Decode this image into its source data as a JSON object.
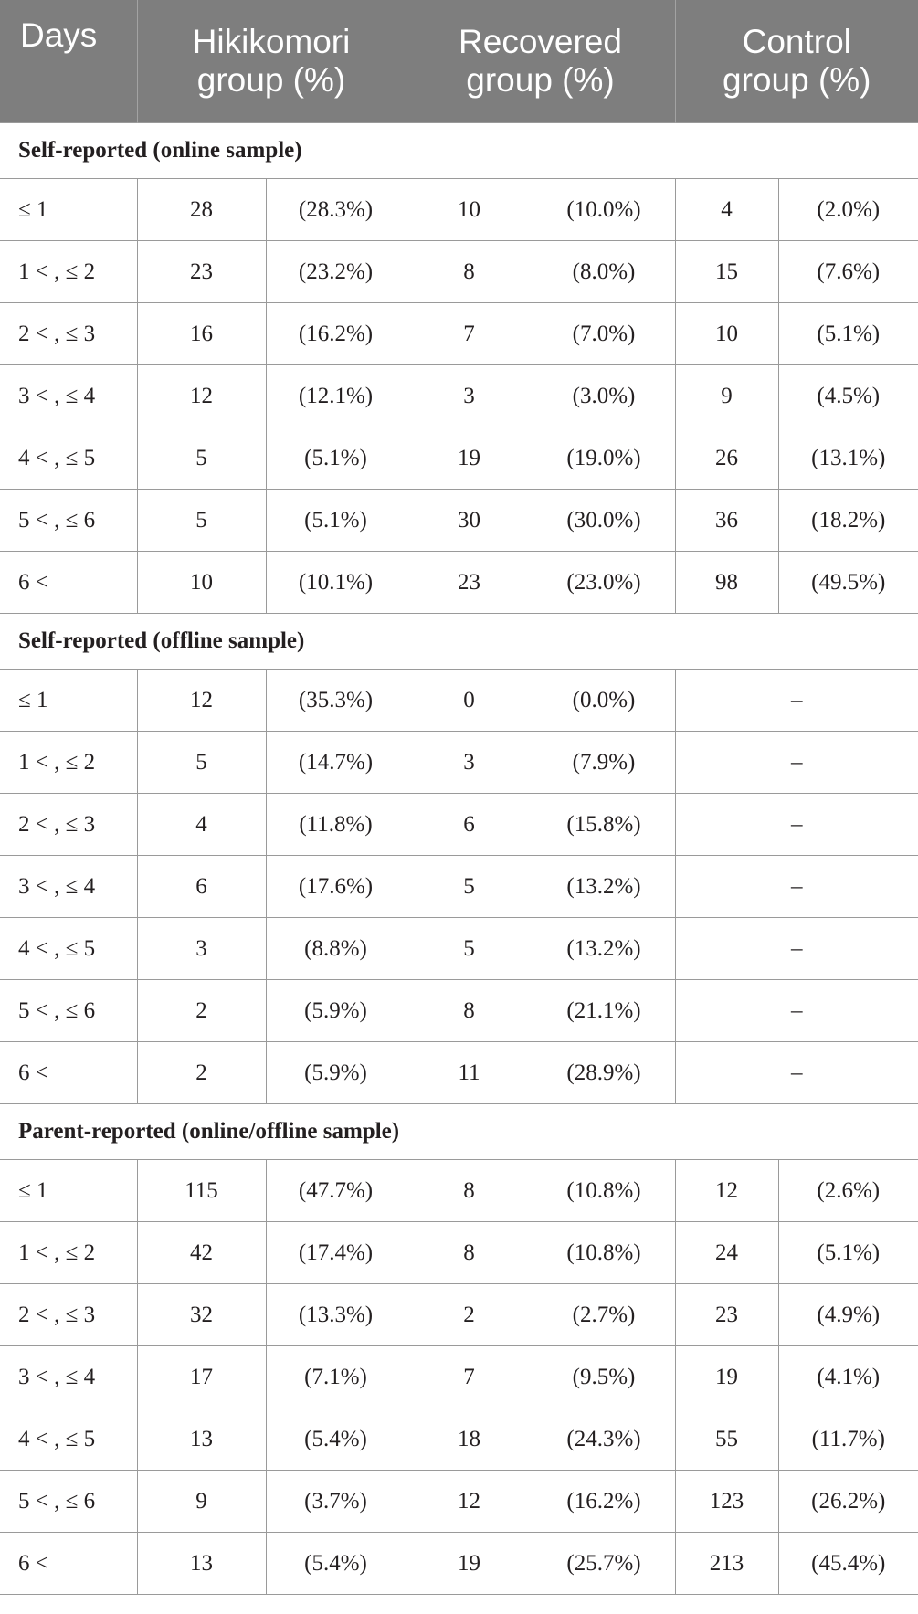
{
  "header": {
    "days": "Days",
    "hikikomori": [
      "Hikikomori",
      "group (%)"
    ],
    "recovered": [
      "Recovered",
      "group (%)"
    ],
    "control": [
      "Control",
      "group (%)"
    ]
  },
  "sections": [
    {
      "title": "Self-reported (online sample)",
      "rows": [
        {
          "days": "≤ 1",
          "h_n": "28",
          "h_p": "(28.3%)",
          "r_n": "10",
          "r_p": "(10.0%)",
          "c_n": "4",
          "c_p": "(2.0%)"
        },
        {
          "days": "1 < , ≤ 2",
          "h_n": "23",
          "h_p": "(23.2%)",
          "r_n": "8",
          "r_p": "(8.0%)",
          "c_n": "15",
          "c_p": "(7.6%)"
        },
        {
          "days": "2 < , ≤ 3",
          "h_n": "16",
          "h_p": "(16.2%)",
          "r_n": "7",
          "r_p": "(7.0%)",
          "c_n": "10",
          "c_p": "(5.1%)"
        },
        {
          "days": "3 < , ≤ 4",
          "h_n": "12",
          "h_p": "(12.1%)",
          "r_n": "3",
          "r_p": "(3.0%)",
          "c_n": "9",
          "c_p": "(4.5%)"
        },
        {
          "days": "4 < , ≤ 5",
          "h_n": "5",
          "h_p": "(5.1%)",
          "r_n": "19",
          "r_p": "(19.0%)",
          "c_n": "26",
          "c_p": "(13.1%)"
        },
        {
          "days": "5 < , ≤ 6",
          "h_n": "5",
          "h_p": "(5.1%)",
          "r_n": "30",
          "r_p": "(30.0%)",
          "c_n": "36",
          "c_p": "(18.2%)"
        },
        {
          "days": "6 <",
          "h_n": "10",
          "h_p": "(10.1%)",
          "r_n": "23",
          "r_p": "(23.0%)",
          "c_n": "98",
          "c_p": "(49.5%)"
        }
      ]
    },
    {
      "title": "Self-reported (offline sample)",
      "rows": [
        {
          "days": "≤ 1",
          "h_n": "12",
          "h_p": "(35.3%)",
          "r_n": "0",
          "r_p": "(0.0%)",
          "c": "–"
        },
        {
          "days": "1 < , ≤ 2",
          "h_n": "5",
          "h_p": "(14.7%)",
          "r_n": "3",
          "r_p": "(7.9%)",
          "c": "–"
        },
        {
          "days": "2 < , ≤ 3",
          "h_n": "4",
          "h_p": "(11.8%)",
          "r_n": "6",
          "r_p": "(15.8%)",
          "c": "–"
        },
        {
          "days": "3 < , ≤ 4",
          "h_n": "6",
          "h_p": "(17.6%)",
          "r_n": "5",
          "r_p": "(13.2%)",
          "c": "–"
        },
        {
          "days": "4 < , ≤ 5",
          "h_n": "3",
          "h_p": "(8.8%)",
          "r_n": "5",
          "r_p": "(13.2%)",
          "c": "–"
        },
        {
          "days": "5 < , ≤ 6",
          "h_n": "2",
          "h_p": "(5.9%)",
          "r_n": "8",
          "r_p": "(21.1%)",
          "c": "–"
        },
        {
          "days": "6 <",
          "h_n": "2",
          "h_p": "(5.9%)",
          "r_n": "11",
          "r_p": "(28.9%)",
          "c": "–"
        }
      ]
    },
    {
      "title": "Parent-reported (online/offline sample)",
      "rows": [
        {
          "days": "≤ 1",
          "h_n": "115",
          "h_p": "(47.7%)",
          "r_n": "8",
          "r_p": "(10.8%)",
          "c_n": "12",
          "c_p": "(2.6%)"
        },
        {
          "days": "1 < , ≤ 2",
          "h_n": "42",
          "h_p": "(17.4%)",
          "r_n": "8",
          "r_p": "(10.8%)",
          "c_n": "24",
          "c_p": "(5.1%)"
        },
        {
          "days": "2 < , ≤ 3",
          "h_n": "32",
          "h_p": "(13.3%)",
          "r_n": "2",
          "r_p": "(2.7%)",
          "c_n": "23",
          "c_p": "(4.9%)"
        },
        {
          "days": "3 < , ≤ 4",
          "h_n": "17",
          "h_p": "(7.1%)",
          "r_n": "7",
          "r_p": "(9.5%)",
          "c_n": "19",
          "c_p": "(4.1%)"
        },
        {
          "days": "4 < , ≤ 5",
          "h_n": "13",
          "h_p": "(5.4%)",
          "r_n": "18",
          "r_p": "(24.3%)",
          "c_n": "55",
          "c_p": "(11.7%)"
        },
        {
          "days": "5 < , ≤ 6",
          "h_n": "9",
          "h_p": "(3.7%)",
          "r_n": "12",
          "r_p": "(16.2%)",
          "c_n": "123",
          "c_p": "(26.2%)"
        },
        {
          "days": "6 <",
          "h_n": "13",
          "h_p": "(5.4%)",
          "r_n": "19",
          "r_p": "(25.7%)",
          "c_n": "213",
          "c_p": "(45.4%)"
        }
      ]
    }
  ]
}
